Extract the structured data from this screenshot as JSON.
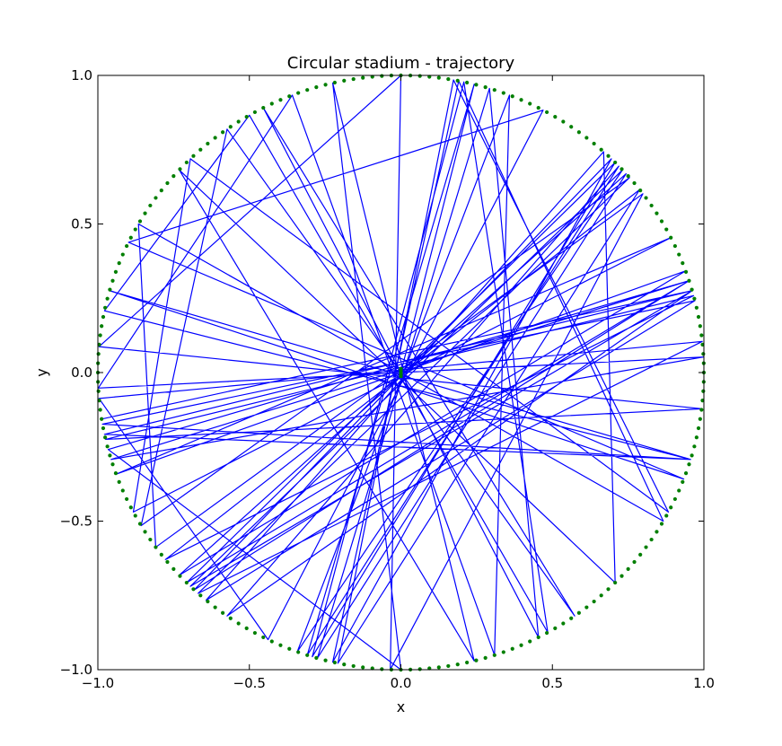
{
  "chart_data": {
    "type": "line",
    "title": "Circular stadium - trajectory",
    "xlabel": "x",
    "ylabel": "y",
    "xlim": [
      -1.0,
      1.0
    ],
    "ylim": [
      -1.0,
      1.0
    ],
    "xticks": [
      -1.0,
      -0.5,
      0.0,
      0.5,
      1.0
    ],
    "yticks": [
      -1.0,
      -0.5,
      0.0,
      0.5,
      1.0
    ],
    "xtick_labels": [
      "−1.0",
      "−0.5",
      "0.0",
      "0.5",
      "1.0"
    ],
    "ytick_labels": [
      "−1.0",
      "−0.5",
      "0.0",
      "0.5",
      "1.0"
    ],
    "grid": false,
    "legend": "none",
    "colors": {
      "trajectory": "#0000ff",
      "boundary": "#007f00",
      "start": "#007f00"
    },
    "boundary": {
      "shape": "circle",
      "radius": 1.0,
      "marker": "dotted",
      "points": 200
    },
    "start_point": [
      0.0,
      0.0
    ],
    "bounce_angles_deg": [
      76,
      252,
      44,
      235,
      16,
      192,
      343,
      168,
      120,
      299,
      78,
      253,
      45,
      225,
      18,
      195,
      270,
      103,
      284,
      137,
      315,
      48,
      230,
      14,
      190,
      343,
      164,
      339,
      154,
      62,
      244,
      185,
      6,
      228,
      41,
      211,
      125,
      305,
      117,
      297,
      73,
      254,
      42,
      223,
      20,
      200,
      27,
      208,
      134,
      332,
      80,
      258,
      38,
      219,
      15,
      193,
      353,
      175,
      90,
      268,
      37,
      216,
      150,
      330,
      79,
      257,
      46,
      227,
      18,
      197,
      3,
      183,
      111,
      288,
      69,
      250,
      43,
      226,
      16,
      189
    ]
  }
}
